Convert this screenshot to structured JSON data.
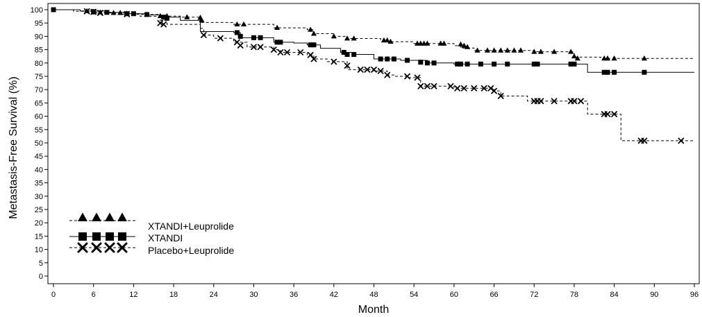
{
  "chart_data": {
    "type": "line",
    "chart_style": "kaplan-meier step curves with censor markers",
    "xlabel": "Month",
    "ylabel": "Metastasis-Free Survival (%)",
    "xlim": [
      0,
      96
    ],
    "ylim": [
      0,
      100
    ],
    "xticks": [
      0,
      6,
      12,
      18,
      24,
      30,
      36,
      42,
      48,
      54,
      60,
      66,
      72,
      78,
      84,
      90,
      96
    ],
    "yticks": [
      0,
      5,
      10,
      15,
      20,
      25,
      30,
      35,
      40,
      45,
      50,
      55,
      60,
      65,
      70,
      75,
      80,
      85,
      90,
      95,
      100
    ],
    "grid": false,
    "legend_position": "bottom-left",
    "series": [
      {
        "name": "XTANDI+Leuprolide",
        "line_style": "dashed",
        "marker": "triangle",
        "x": [
          0,
          4,
          6,
          9,
          11,
          13,
          16,
          19,
          22,
          22,
          27,
          33,
          38,
          39,
          42,
          44,
          49,
          50,
          54,
          60,
          61,
          63,
          72,
          78,
          82,
          88,
          96
        ],
        "y": [
          100,
          99.5,
          99,
          98.8,
          98.5,
          98.2,
          97.6,
          97.2,
          97,
          95.2,
          94.5,
          93.2,
          92.5,
          91,
          90,
          89.2,
          88.5,
          88,
          87.3,
          86.5,
          85.6,
          84.7,
          84.2,
          82.2,
          81.7,
          81.7,
          81.7
        ],
        "censored": [
          [
            5,
            99.5
          ],
          [
            6,
            99
          ],
          [
            7,
            99
          ],
          [
            9,
            98.8
          ],
          [
            10,
            98.8
          ],
          [
            11,
            98.5
          ],
          [
            16,
            97.6
          ],
          [
            17,
            97.6
          ],
          [
            20,
            97.2
          ],
          [
            22,
            97
          ],
          [
            22.2,
            96
          ],
          [
            27.5,
            94.5
          ],
          [
            28.5,
            94.5
          ],
          [
            33.5,
            93.2
          ],
          [
            38.5,
            92.5
          ],
          [
            39,
            91
          ],
          [
            42,
            90
          ],
          [
            44,
            89.2
          ],
          [
            45,
            89.2
          ],
          [
            49.5,
            88.5
          ],
          [
            50,
            88.5
          ],
          [
            50.5,
            88
          ],
          [
            54.5,
            87.3
          ],
          [
            55,
            87.3
          ],
          [
            55.5,
            87.3
          ],
          [
            56,
            87.3
          ],
          [
            58,
            87.3
          ],
          [
            58.5,
            87.3
          ],
          [
            61,
            87
          ],
          [
            61.5,
            86.5
          ],
          [
            62,
            86
          ],
          [
            63.5,
            84.7
          ],
          [
            65,
            84.7
          ],
          [
            66,
            84.7
          ],
          [
            67,
            84.7
          ],
          [
            68,
            84.7
          ],
          [
            69,
            84.7
          ],
          [
            70,
            84.7
          ],
          [
            72,
            84.2
          ],
          [
            73,
            84.2
          ],
          [
            75,
            84.2
          ],
          [
            77.5,
            84.2
          ],
          [
            78,
            82.5
          ],
          [
            78.5,
            81.7
          ],
          [
            82.5,
            81.7
          ],
          [
            83,
            81.7
          ],
          [
            84,
            81.7
          ],
          [
            88.5,
            81.7
          ]
        ]
      },
      {
        "name": "XTANDI",
        "line_style": "solid",
        "marker": "square",
        "x": [
          0,
          4,
          8,
          11,
          14,
          16,
          19,
          22,
          27,
          28,
          33,
          36,
          38,
          40,
          43,
          45,
          48,
          52,
          56,
          60,
          80,
          96
        ],
        "y": [
          100,
          99.5,
          99,
          98.5,
          98,
          97.2,
          96,
          91.8,
          91.4,
          89.5,
          87.8,
          87.5,
          86.8,
          85.5,
          84,
          83.2,
          81.5,
          81,
          80,
          79.6,
          76.5,
          76.5
        ],
        "censored": [
          [
            0,
            100
          ],
          [
            6,
            99.3
          ],
          [
            8,
            99
          ],
          [
            11,
            98.5
          ],
          [
            12,
            98.5
          ],
          [
            14,
            98.2
          ],
          [
            16.5,
            97.2
          ],
          [
            17,
            96.8
          ],
          [
            27.5,
            91.4
          ],
          [
            28,
            90
          ],
          [
            30,
            89.5
          ],
          [
            31,
            89.5
          ],
          [
            33.5,
            87.8
          ],
          [
            34,
            87.8
          ],
          [
            38.5,
            86.8
          ],
          [
            39,
            86.8
          ],
          [
            43.5,
            84
          ],
          [
            44,
            83.2
          ],
          [
            45,
            83.2
          ],
          [
            49,
            81.5
          ],
          [
            50,
            81.5
          ],
          [
            51,
            81.5
          ],
          [
            53,
            81
          ],
          [
            55,
            80.3
          ],
          [
            56,
            80
          ],
          [
            57,
            80
          ],
          [
            60.5,
            79.6
          ],
          [
            61,
            79.6
          ],
          [
            62,
            79.6
          ],
          [
            64,
            79.6
          ],
          [
            66,
            79.6
          ],
          [
            68,
            79.6
          ],
          [
            72,
            79.6
          ],
          [
            72.5,
            79.6
          ],
          [
            77.5,
            79.6
          ],
          [
            78,
            79.6
          ],
          [
            82.5,
            76.5
          ],
          [
            83,
            76.5
          ],
          [
            84,
            76.5
          ],
          [
            88.5,
            76.5
          ]
        ]
      },
      {
        "name": "Placebo+Leuprolide",
        "line_style": "dashed",
        "marker": "x",
        "x": [
          0,
          3,
          6,
          10,
          13,
          16,
          17,
          22,
          22.5,
          24,
          27,
          29,
          33,
          34,
          38,
          39,
          41,
          44,
          48,
          50,
          51,
          53,
          55,
          60,
          66,
          67,
          71,
          80,
          85,
          96
        ],
        "y": [
          100,
          99.4,
          98.8,
          98.3,
          97.5,
          96,
          94.5,
          93,
          90.5,
          89.3,
          87.8,
          86,
          85,
          84,
          83,
          81.5,
          80.5,
          77.5,
          77,
          75.5,
          75,
          74.5,
          71.3,
          70.5,
          69.5,
          67.6,
          65.7,
          60.8,
          50.8,
          50.8
        ],
        "censored": [
          [
            5,
            99.4
          ],
          [
            6,
            99.2
          ],
          [
            7,
            98.8
          ],
          [
            11,
            98.3
          ],
          [
            16,
            95
          ],
          [
            16.5,
            94.5
          ],
          [
            22.5,
            90.5
          ],
          [
            25,
            89.3
          ],
          [
            27.5,
            87.8
          ],
          [
            28,
            86.6
          ],
          [
            30,
            86
          ],
          [
            31,
            86
          ],
          [
            33,
            85
          ],
          [
            34,
            84
          ],
          [
            35,
            84
          ],
          [
            37,
            84
          ],
          [
            38.5,
            83
          ],
          [
            39,
            81.5
          ],
          [
            42,
            80.5
          ],
          [
            44,
            79
          ],
          [
            46,
            77.5
          ],
          [
            47,
            77.5
          ],
          [
            48,
            77.5
          ],
          [
            49,
            77
          ],
          [
            50,
            75.5
          ],
          [
            53,
            75
          ],
          [
            54.5,
            74.5
          ],
          [
            55,
            71.3
          ],
          [
            56,
            71.3
          ],
          [
            57,
            71.3
          ],
          [
            59.5,
            71.3
          ],
          [
            60.5,
            70.5
          ],
          [
            61.5,
            70.5
          ],
          [
            63,
            70.5
          ],
          [
            64.5,
            70.5
          ],
          [
            65.5,
            70.5
          ],
          [
            66,
            69.5
          ],
          [
            67,
            67.6
          ],
          [
            72,
            65.7
          ],
          [
            72.5,
            65.7
          ],
          [
            73,
            65.7
          ],
          [
            75,
            65.7
          ],
          [
            77.5,
            65.7
          ],
          [
            78,
            65.7
          ],
          [
            79,
            65.7
          ],
          [
            82.5,
            60.8
          ],
          [
            83,
            60.8
          ],
          [
            84,
            60.8
          ],
          [
            88,
            50.8
          ],
          [
            88.5,
            50.8
          ],
          [
            94,
            50.8
          ]
        ]
      }
    ]
  }
}
